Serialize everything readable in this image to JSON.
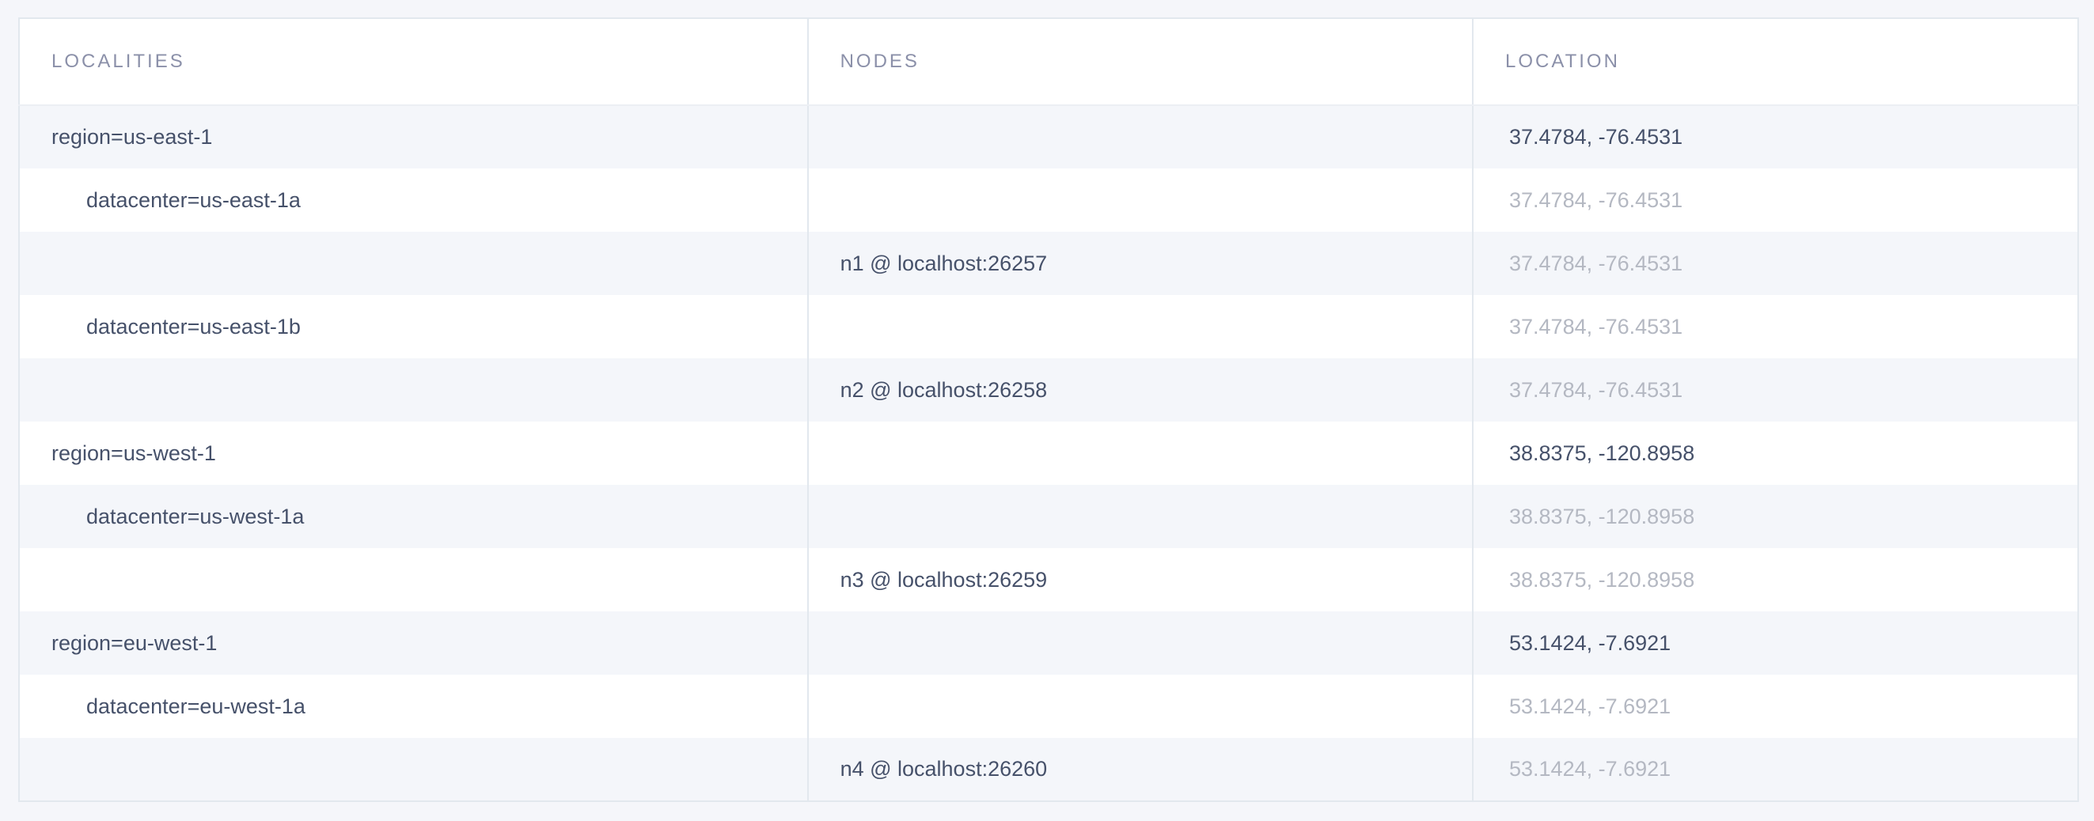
{
  "table": {
    "columns": [
      {
        "id": "localities",
        "label": "LOCALITIES"
      },
      {
        "id": "nodes",
        "label": "NODES"
      },
      {
        "id": "location",
        "label": "LOCATION"
      }
    ],
    "rows": [
      {
        "type": "region",
        "locality": "region=us-east-1",
        "node": "",
        "location": "37.4784, -76.4531",
        "location_muted": false
      },
      {
        "type": "datacenter",
        "locality": "datacenter=us-east-1a",
        "node": "",
        "location": "37.4784, -76.4531",
        "location_muted": true
      },
      {
        "type": "node",
        "locality": "",
        "node": "n1 @ localhost:26257",
        "location": "37.4784, -76.4531",
        "location_muted": true
      },
      {
        "type": "datacenter",
        "locality": "datacenter=us-east-1b",
        "node": "",
        "location": "37.4784, -76.4531",
        "location_muted": true
      },
      {
        "type": "node",
        "locality": "",
        "node": "n2 @ localhost:26258",
        "location": "37.4784, -76.4531",
        "location_muted": true
      },
      {
        "type": "region",
        "locality": "region=us-west-1",
        "node": "",
        "location": "38.8375, -120.8958",
        "location_muted": false
      },
      {
        "type": "datacenter",
        "locality": "datacenter=us-west-1a",
        "node": "",
        "location": "38.8375, -120.8958",
        "location_muted": true
      },
      {
        "type": "node",
        "locality": "",
        "node": "n3 @ localhost:26259",
        "location": "38.8375, -120.8958",
        "location_muted": true
      },
      {
        "type": "region",
        "locality": "region=eu-west-1",
        "node": "",
        "location": "53.1424, -7.6921",
        "location_muted": false
      },
      {
        "type": "datacenter",
        "locality": "datacenter=eu-west-1a",
        "node": "",
        "location": "53.1424, -7.6921",
        "location_muted": true
      },
      {
        "type": "node",
        "locality": "",
        "node": "n4 @ localhost:26260",
        "location": "53.1424, -7.6921",
        "location_muted": true
      }
    ],
    "colors": {
      "page-bg": "#f5f6fa",
      "stripe": "#f4f6fa",
      "row_white": "#ffffff",
      "border": "#e2e8ee",
      "text_dark": "#46516a",
      "text_muted": "#b4b8c2",
      "header_text": "#8b90a9"
    }
  }
}
